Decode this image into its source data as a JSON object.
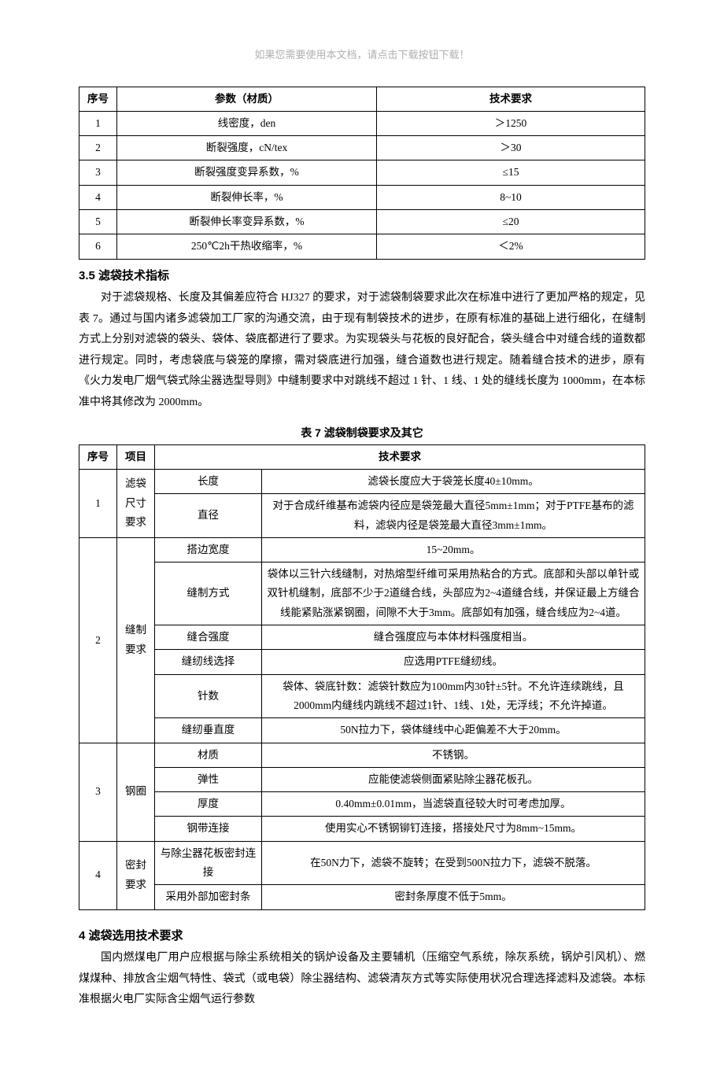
{
  "top_notice": "如果您需要使用本文档，请点击下载按钮下载！",
  "table6": {
    "headers": {
      "seq": "序号",
      "param": "参数（材质）",
      "req": "技术要求"
    },
    "rows": [
      {
        "seq": "1",
        "param": "线密度，den",
        "req": "＞1250"
      },
      {
        "seq": "2",
        "param": "断裂强度，cN/tex",
        "req": "＞30"
      },
      {
        "seq": "3",
        "param": "断裂强度变异系数，%",
        "req": "≤15"
      },
      {
        "seq": "4",
        "param": "断裂伸长率，%",
        "req": "8~10"
      },
      {
        "seq": "5",
        "param": "断裂伸长率变异系数，%",
        "req": "≤20"
      },
      {
        "seq": "6",
        "param": "250℃2h干热收缩率，%",
        "req": "＜2%"
      }
    ]
  },
  "section35": {
    "heading": "3.5 滤袋技术指标",
    "para": "对于滤袋规格、长度及其偏差应符合 HJ327 的要求，对于滤袋制袋要求此次在标准中进行了更加严格的规定，见表 7。通过与国内诸多滤袋加工厂家的沟通交流，由于现有制袋技术的进步，在原有标准的基础上进行细化，在缝制方式上分别对滤袋的袋头、袋体、袋底都进行了要求。为实现袋头与花板的良好配合，袋头缝合中对缝合线的道数都进行规定。同时，考虑袋底与袋笼的摩擦，需对袋底进行加强，缝合道数也进行规定。随着缝合技术的进步，原有《火力发电厂烟气袋式除尘器选型导则》中缝制要求中对跳线不超过 1 针、1 线、1 处的缝线长度为 1000mm，在本标准中将其修改为 2000mm。"
  },
  "table7": {
    "title": "表 7  滤袋制袋要求及其它",
    "headers": {
      "seq": "序号",
      "item": "项目",
      "req": "技术要求"
    },
    "rows": [
      {
        "seq": "1",
        "item": "滤袋尺寸要求",
        "subs": [
          {
            "sub": "长度",
            "req": "滤袋长度应大于袋笼长度40±10mm。"
          },
          {
            "sub": "直径",
            "req": "对于合成纤维基布滤袋内径应是袋笼最大直径5mm±1mm；对于PTFE基布的滤料，滤袋内径是袋笼最大直径3mm±1mm。"
          }
        ]
      },
      {
        "seq": "2",
        "item": "缝制要求",
        "subs": [
          {
            "sub": "搭边宽度",
            "req": "15~20mm。"
          },
          {
            "sub": "缝制方式",
            "req": "袋体以三针六线缝制，对热熔型纤维可采用热粘合的方式。底部和头部以单针或双针机缝制，底部不少于2道缝合线，头部应为2~4道缝合线，并保证最上方缝合线能紧贴涨紧钢圈，间隙不大于3mm。底部如有加强，缝合线应为2~4道。"
          },
          {
            "sub": "缝合强度",
            "req": "缝合强度应与本体材料强度相当。"
          },
          {
            "sub": "缝纫线选择",
            "req": "应选用PTFE缝纫线。"
          },
          {
            "sub": "针数",
            "req": "袋体、袋底针数：滤袋针数应为100mm内30针±5针。不允许连续跳线，且2000mm内缝线内跳线不超过1针、1线、1处，无浮线；不允许掉道。"
          },
          {
            "sub": "缝纫垂直度",
            "req": "50N拉力下，袋体缝线中心距偏差不大于20mm。"
          }
        ]
      },
      {
        "seq": "3",
        "item": "钢圈",
        "subs": [
          {
            "sub": "材质",
            "req": "不锈钢。"
          },
          {
            "sub": "弹性",
            "req": "应能使滤袋侧面紧贴除尘器花板孔。"
          },
          {
            "sub": "厚度",
            "req": "0.40mm±0.01mm，当滤袋直径较大时可考虑加厚。"
          },
          {
            "sub": "钢带连接",
            "req": "使用实心不锈钢铆钉连接，搭接处尺寸为8mm~15mm。"
          }
        ]
      },
      {
        "seq": "4",
        "item": "密封要求",
        "subs": [
          {
            "sub": "与除尘器花板密封连接",
            "req": "在50N力下，滤袋不旋转；在受到500N拉力下，滤袋不脱落。"
          },
          {
            "sub": "采用外部加密封条",
            "req": "密封条厚度不低于5mm。"
          }
        ]
      }
    ]
  },
  "section4": {
    "heading": "4 滤袋选用技术要求",
    "para": "国内燃煤电厂用户应根据与除尘系统相关的锅炉设备及主要辅机（压缩空气系统，除灰系统，锅炉引风机）、燃煤煤种、排放含尘烟气特性、袋式（或电袋）除尘器结构、滤袋清灰方式等实际使用状况合理选择滤料及滤袋。本标准根据火电厂实际含尘烟气运行参数"
  }
}
